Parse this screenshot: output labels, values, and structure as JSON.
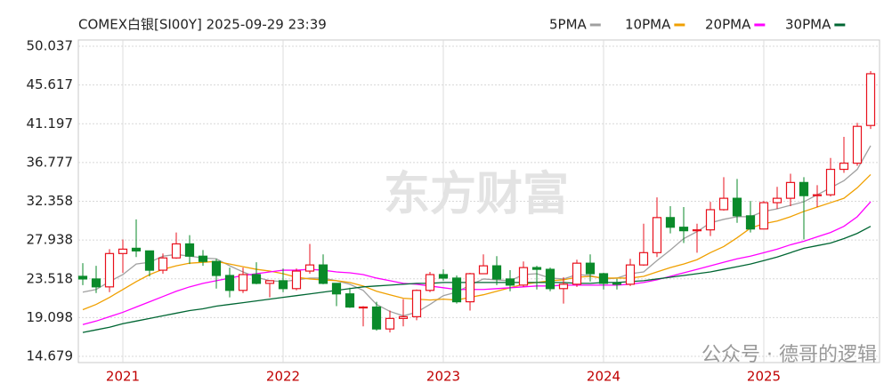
{
  "chart_data": {
    "type": "candlestick",
    "title": "COMEX白银[SI00Y] 2025-09-29 23:39",
    "watermark": "东方财富",
    "watermark_2": "公众号 · 德哥的逻辑",
    "categories": [
      null,
      null,
      null,
      "2021",
      null,
      null,
      null,
      null,
      null,
      null,
      null,
      null,
      null,
      null,
      null,
      "2022",
      null,
      null,
      null,
      null,
      null,
      null,
      null,
      null,
      null,
      null,
      null,
      "2023",
      null,
      null,
      null,
      null,
      null,
      null,
      null,
      null,
      null,
      null,
      null,
      "2024",
      null,
      null,
      null,
      null,
      null,
      null,
      null,
      null,
      null,
      null,
      null,
      "2025",
      null,
      null,
      null,
      null,
      null,
      null,
      null,
      null
    ],
    "open": [
      23.8,
      23.5,
      22.6,
      26.4,
      27.0,
      26.7,
      24.5,
      25.9,
      27.5,
      26.1,
      25.5,
      23.9,
      22.2,
      24.0,
      23.0,
      23.3,
      22.4,
      24.4,
      25.1,
      23.0,
      21.8,
      20.3,
      20.3,
      17.8,
      19.0,
      19.2,
      22.2,
      24.0,
      23.6,
      20.9,
      24.1,
      25.0,
      23.5,
      22.8,
      24.8,
      24.6,
      22.4,
      22.9,
      25.3,
      24.1,
      23.0,
      22.9,
      25.1,
      26.5,
      30.5,
      29.4,
      29.0,
      29.1,
      31.4,
      32.7,
      30.7,
      29.2,
      32.2,
      32.7,
      34.5,
      33.0,
      33.1,
      36.0,
      36.7,
      41.0
    ],
    "high": [
      25.3,
      25.0,
      26.9,
      28.0,
      30.3,
      26.7,
      26.4,
      28.8,
      28.5,
      26.8,
      25.8,
      24.8,
      24.8,
      25.4,
      23.3,
      24.7,
      24.7,
      27.5,
      26.3,
      23.0,
      22.5,
      20.4,
      20.9,
      19.9,
      21.2,
      22.3,
      24.3,
      24.6,
      23.9,
      24.2,
      26.3,
      26.1,
      24.5,
      25.5,
      25.0,
      24.8,
      23.7,
      25.7,
      26.3,
      24.2,
      23.5,
      25.8,
      29.8,
      32.8,
      31.8,
      31.7,
      29.8,
      32.3,
      35.1,
      34.9,
      32.4,
      32.4,
      34.0,
      35.5,
      35.1,
      34.2,
      37.3,
      39.7,
      41.3,
      47.2
    ],
    "low": [
      22.8,
      21.9,
      22.0,
      24.2,
      26.0,
      23.8,
      24.1,
      25.8,
      25.2,
      25.0,
      22.4,
      21.4,
      21.9,
      22.9,
      21.4,
      22.0,
      22.2,
      24.1,
      22.9,
      20.4,
      20.2,
      18.1,
      17.6,
      17.4,
      18.1,
      18.8,
      22.0,
      23.3,
      20.7,
      19.9,
      24.1,
      22.8,
      22.1,
      22.6,
      22.3,
      22.1,
      20.7,
      22.6,
      23.2,
      22.3,
      22.3,
      22.7,
      25.0,
      26.0,
      28.7,
      27.6,
      26.5,
      28.4,
      31.3,
      29.9,
      28.8,
      29.2,
      31.5,
      31.8,
      28.0,
      31.7,
      32.9,
      35.6,
      36.4,
      40.6
    ],
    "close": [
      23.5,
      22.6,
      26.4,
      26.9,
      26.7,
      24.5,
      25.9,
      27.5,
      26.1,
      25.5,
      23.9,
      22.2,
      24.0,
      23.0,
      23.3,
      22.4,
      24.4,
      25.1,
      23.0,
      21.8,
      20.3,
      20.3,
      17.8,
      19.0,
      19.2,
      22.2,
      24.0,
      23.6,
      20.9,
      24.1,
      25.0,
      23.5,
      22.8,
      24.8,
      24.6,
      22.4,
      22.9,
      25.3,
      24.1,
      23.0,
      22.9,
      25.1,
      26.5,
      30.5,
      29.4,
      29.0,
      29.1,
      31.4,
      32.7,
      30.7,
      29.2,
      32.2,
      32.7,
      34.5,
      33.0,
      33.1,
      36.0,
      36.7,
      40.9,
      46.9
    ],
    "series": [
      {
        "name": "5PMA",
        "color": "#a0a0a0",
        "values": [
          22.0,
          22.3,
          23.2,
          24.0,
          25.2,
          25.4,
          26.1,
          26.3,
          26.1,
          25.9,
          25.8,
          25.0,
          24.3,
          23.7,
          23.3,
          23.2,
          23.4,
          23.6,
          23.6,
          23.3,
          22.9,
          22.2,
          20.6,
          19.8,
          19.3,
          19.7,
          20.6,
          21.6,
          22.0,
          22.8,
          23.5,
          23.4,
          23.3,
          24.0,
          24.1,
          23.6,
          23.5,
          24.0,
          23.9,
          23.5,
          23.6,
          24.1,
          24.3,
          25.6,
          26.8,
          28.1,
          28.9,
          29.9,
          30.3,
          30.6,
          30.6,
          31.2,
          31.5,
          31.9,
          32.3,
          33.1,
          33.9,
          34.7,
          36.0,
          38.7
        ]
      },
      {
        "name": "10PMA",
        "color": "#f0a000",
        "values": [
          20.0,
          20.6,
          21.4,
          22.3,
          23.2,
          24.0,
          24.6,
          25.0,
          25.3,
          25.4,
          25.5,
          25.2,
          24.9,
          24.6,
          24.4,
          24.1,
          23.7,
          23.5,
          23.4,
          23.3,
          23.1,
          22.7,
          22.1,
          21.7,
          21.3,
          21.2,
          21.1,
          21.2,
          21.1,
          21.4,
          21.7,
          22.1,
          22.5,
          22.9,
          23.1,
          23.3,
          23.4,
          23.7,
          23.8,
          23.6,
          23.6,
          23.6,
          23.8,
          24.3,
          24.8,
          25.2,
          25.7,
          26.5,
          27.2,
          28.2,
          29.3,
          29.8,
          30.1,
          30.6,
          31.2,
          31.7,
          32.2,
          32.7,
          33.9,
          35.4
        ]
      },
      {
        "name": "20PMA",
        "color": "#ff00ff",
        "values": [
          18.3,
          18.7,
          19.2,
          19.7,
          20.3,
          20.9,
          21.5,
          22.1,
          22.6,
          23.0,
          23.3,
          23.6,
          23.9,
          24.1,
          24.3,
          24.5,
          24.5,
          24.6,
          24.5,
          24.3,
          24.2,
          24.0,
          23.6,
          23.3,
          23.0,
          22.9,
          22.7,
          22.5,
          22.3,
          22.3,
          22.3,
          22.4,
          22.5,
          22.6,
          22.7,
          22.7,
          22.8,
          22.8,
          22.8,
          22.8,
          22.8,
          22.9,
          23.1,
          23.4,
          23.8,
          24.2,
          24.6,
          25.0,
          25.4,
          25.8,
          26.1,
          26.5,
          26.9,
          27.4,
          27.8,
          28.3,
          28.8,
          29.5,
          30.6,
          32.3
        ]
      },
      {
        "name": "30PMA",
        "color": "#006633",
        "values": [
          17.4,
          17.7,
          18.0,
          18.4,
          18.7,
          19.0,
          19.3,
          19.6,
          19.9,
          20.1,
          20.4,
          20.6,
          20.8,
          21.0,
          21.2,
          21.4,
          21.6,
          21.8,
          22.0,
          22.2,
          22.4,
          22.6,
          22.7,
          22.8,
          22.9,
          23.0,
          23.0,
          23.1,
          23.1,
          23.1,
          23.1,
          23.1,
          23.1,
          23.1,
          23.1,
          23.1,
          23.1,
          23.0,
          23.0,
          23.1,
          23.1,
          23.2,
          23.3,
          23.5,
          23.7,
          23.9,
          24.1,
          24.3,
          24.6,
          24.9,
          25.2,
          25.6,
          26.0,
          26.5,
          27.0,
          27.3,
          27.6,
          28.1,
          28.7,
          29.5
        ]
      }
    ],
    "up_color": "#e8101c",
    "down_color": "#0a8a2a",
    "ylim": [
      14.679,
      50.037
    ],
    "yticks": [
      14.679,
      19.098,
      23.518,
      27.938,
      32.358,
      36.777,
      41.197,
      45.617,
      50.037
    ],
    "grid": true
  }
}
